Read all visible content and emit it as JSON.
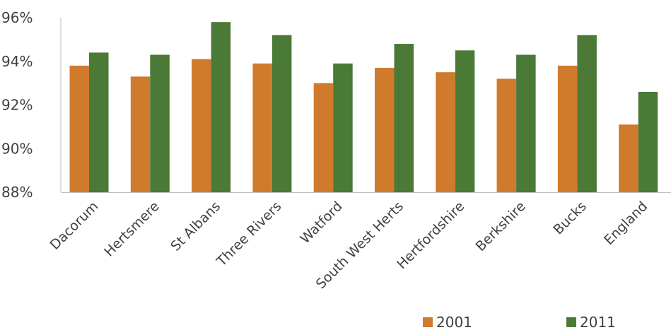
{
  "chart_data": {
    "type": "bar",
    "categories": [
      "Dacorum",
      "Hertsmere",
      "St Albans",
      "Three Rivers",
      "Watford",
      "South West Herts",
      "Hertfordshire",
      "Berkshire",
      "Bucks",
      "England"
    ],
    "series": [
      {
        "name": "2001",
        "color": "#d07a2c",
        "values": [
          93.8,
          93.3,
          94.1,
          93.9,
          93.0,
          93.7,
          93.5,
          93.2,
          93.8,
          91.1
        ]
      },
      {
        "name": "2011",
        "color": "#4a7a36",
        "values": [
          94.4,
          94.3,
          95.8,
          95.2,
          93.9,
          94.8,
          94.5,
          94.3,
          95.2,
          92.6
        ]
      }
    ],
    "y_ticks": [
      "88%",
      "90%",
      "92%",
      "94%",
      "96%"
    ],
    "ylim": [
      88,
      96
    ],
    "grid": false,
    "legend": "bottom-right",
    "title": "",
    "xlabel": "",
    "ylabel": ""
  }
}
